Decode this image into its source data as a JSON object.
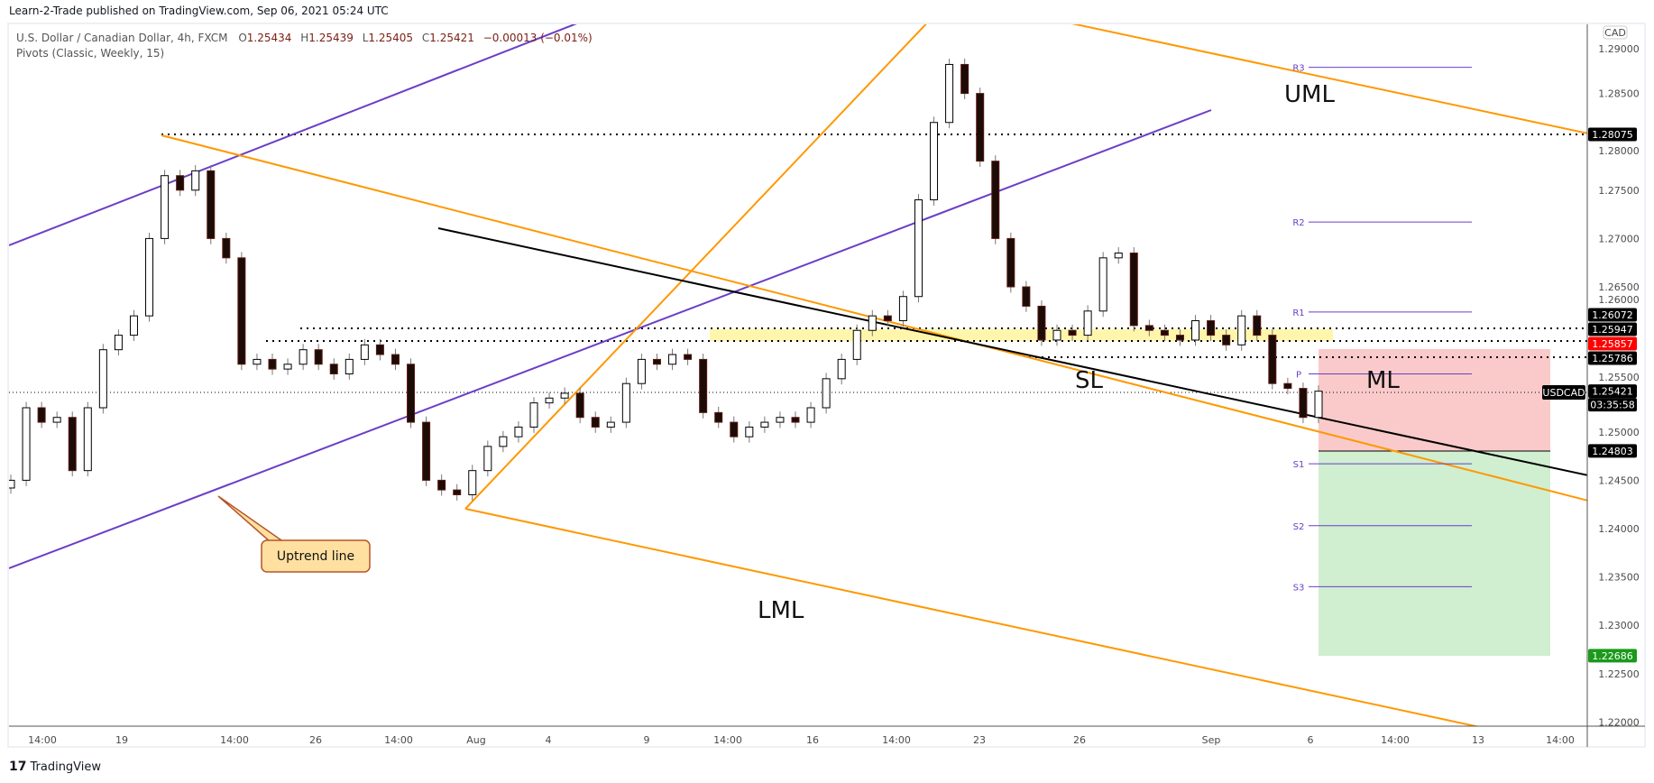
{
  "publish_line": "Learn-2-Trade published on TradingView.com, Sep 06, 2021 05:24 UTC",
  "legend": {
    "symbol_desc": "U.S. Dollar / Canadian Dollar, 4h, FXCM",
    "o_label": "O",
    "o": "1.25434",
    "h_label": "H",
    "h": "1.25439",
    "l_label": "L",
    "l": "1.25405",
    "c_label": "C",
    "c": "1.25421",
    "change": "−0.00013 (−0.01%)",
    "indicator": "Pivots (Classic, Weekly, 15)"
  },
  "currency_badge": "CAD",
  "price_axis": [
    "1.29000",
    "1.28500",
    "1.28000",
    "1.27500",
    "1.27000",
    "1.26500",
    "1.26000",
    "1.25500",
    "1.25000",
    "1.24500",
    "1.24000",
    "1.23500",
    "1.23000",
    "1.22500",
    "1.22000"
  ],
  "price_tags": {
    "level_1": "1.28075",
    "level_2": "1.26072",
    "level_3": "1.25947",
    "level_4": "1.25857",
    "level_5": "1.25786",
    "current": "1.25421",
    "countdown": "03:35:58",
    "stop": "1.24803",
    "target": "1.22686",
    "symbol": "USDCAD"
  },
  "time_axis": [
    "14:00",
    "19",
    "14:00",
    "26",
    "14:00",
    "Aug",
    "4",
    "9",
    "14:00",
    "16",
    "14:00",
    "23",
    "26",
    "Sep",
    "6",
    "14:00",
    "13",
    "14:00"
  ],
  "pivots": {
    "R3": "R3",
    "R2": "R2",
    "R1": "R1",
    "P": "P",
    "S1": "S1",
    "S2": "S2",
    "S3": "S3"
  },
  "annotations": {
    "uml": "UML",
    "ml": "ML",
    "sl": "SL",
    "lml": "LML",
    "uptrend": "Uptrend line"
  },
  "colors": {
    "bull": "#ffffff",
    "bear": "#1c0b07",
    "purple": "#6a3fc7",
    "orange": "#ff9800",
    "zone": "#fff59d",
    "risk": "#f8b4b4",
    "reward": "#c8ebc8"
  },
  "chart_data": {
    "type": "candlestick",
    "interval": "4h",
    "ylim": [
      1.22,
      1.29
    ],
    "closes": [
      1.245,
      1.2525,
      1.251,
      1.2515,
      1.246,
      1.2525,
      1.2585,
      1.26,
      1.262,
      1.27,
      1.2765,
      1.275,
      1.277,
      1.27,
      1.268,
      1.257,
      1.2575,
      1.2565,
      1.257,
      1.2585,
      1.257,
      1.256,
      1.2575,
      1.259,
      1.258,
      1.257,
      1.251,
      1.245,
      1.244,
      1.2435,
      1.246,
      1.2485,
      1.2495,
      1.2505,
      1.253,
      1.2535,
      1.254,
      1.2515,
      1.2505,
      1.251,
      1.255,
      1.2575,
      1.257,
      1.258,
      1.2575,
      1.252,
      1.251,
      1.2495,
      1.2505,
      1.251,
      1.2515,
      1.251,
      1.2525,
      1.2555,
      1.2575,
      1.2605,
      1.262,
      1.2615,
      1.264,
      1.274,
      1.282,
      1.288,
      1.285,
      1.278,
      1.27,
      1.265,
      1.263,
      1.2595,
      1.2605,
      1.26,
      1.2625,
      1.268,
      1.2685,
      1.261,
      1.2605,
      1.26,
      1.2595,
      1.2615,
      1.26,
      1.259,
      1.262,
      1.26,
      1.255,
      1.2545,
      1.2515,
      1.25421
    ],
    "horizontal_levels": [
      1.28075,
      1.25947,
      1.25857,
      1.25786
    ],
    "pivot_levels": {
      "R3": 1.2877,
      "R2": 1.2717,
      "R1": 1.2624,
      "P": 1.256,
      "S1": 1.2467,
      "S2": 1.2403,
      "S3": 1.234
    },
    "position": {
      "entry_zone_top": 1.2582,
      "stop": 1.24803,
      "target": 1.22686
    }
  }
}
